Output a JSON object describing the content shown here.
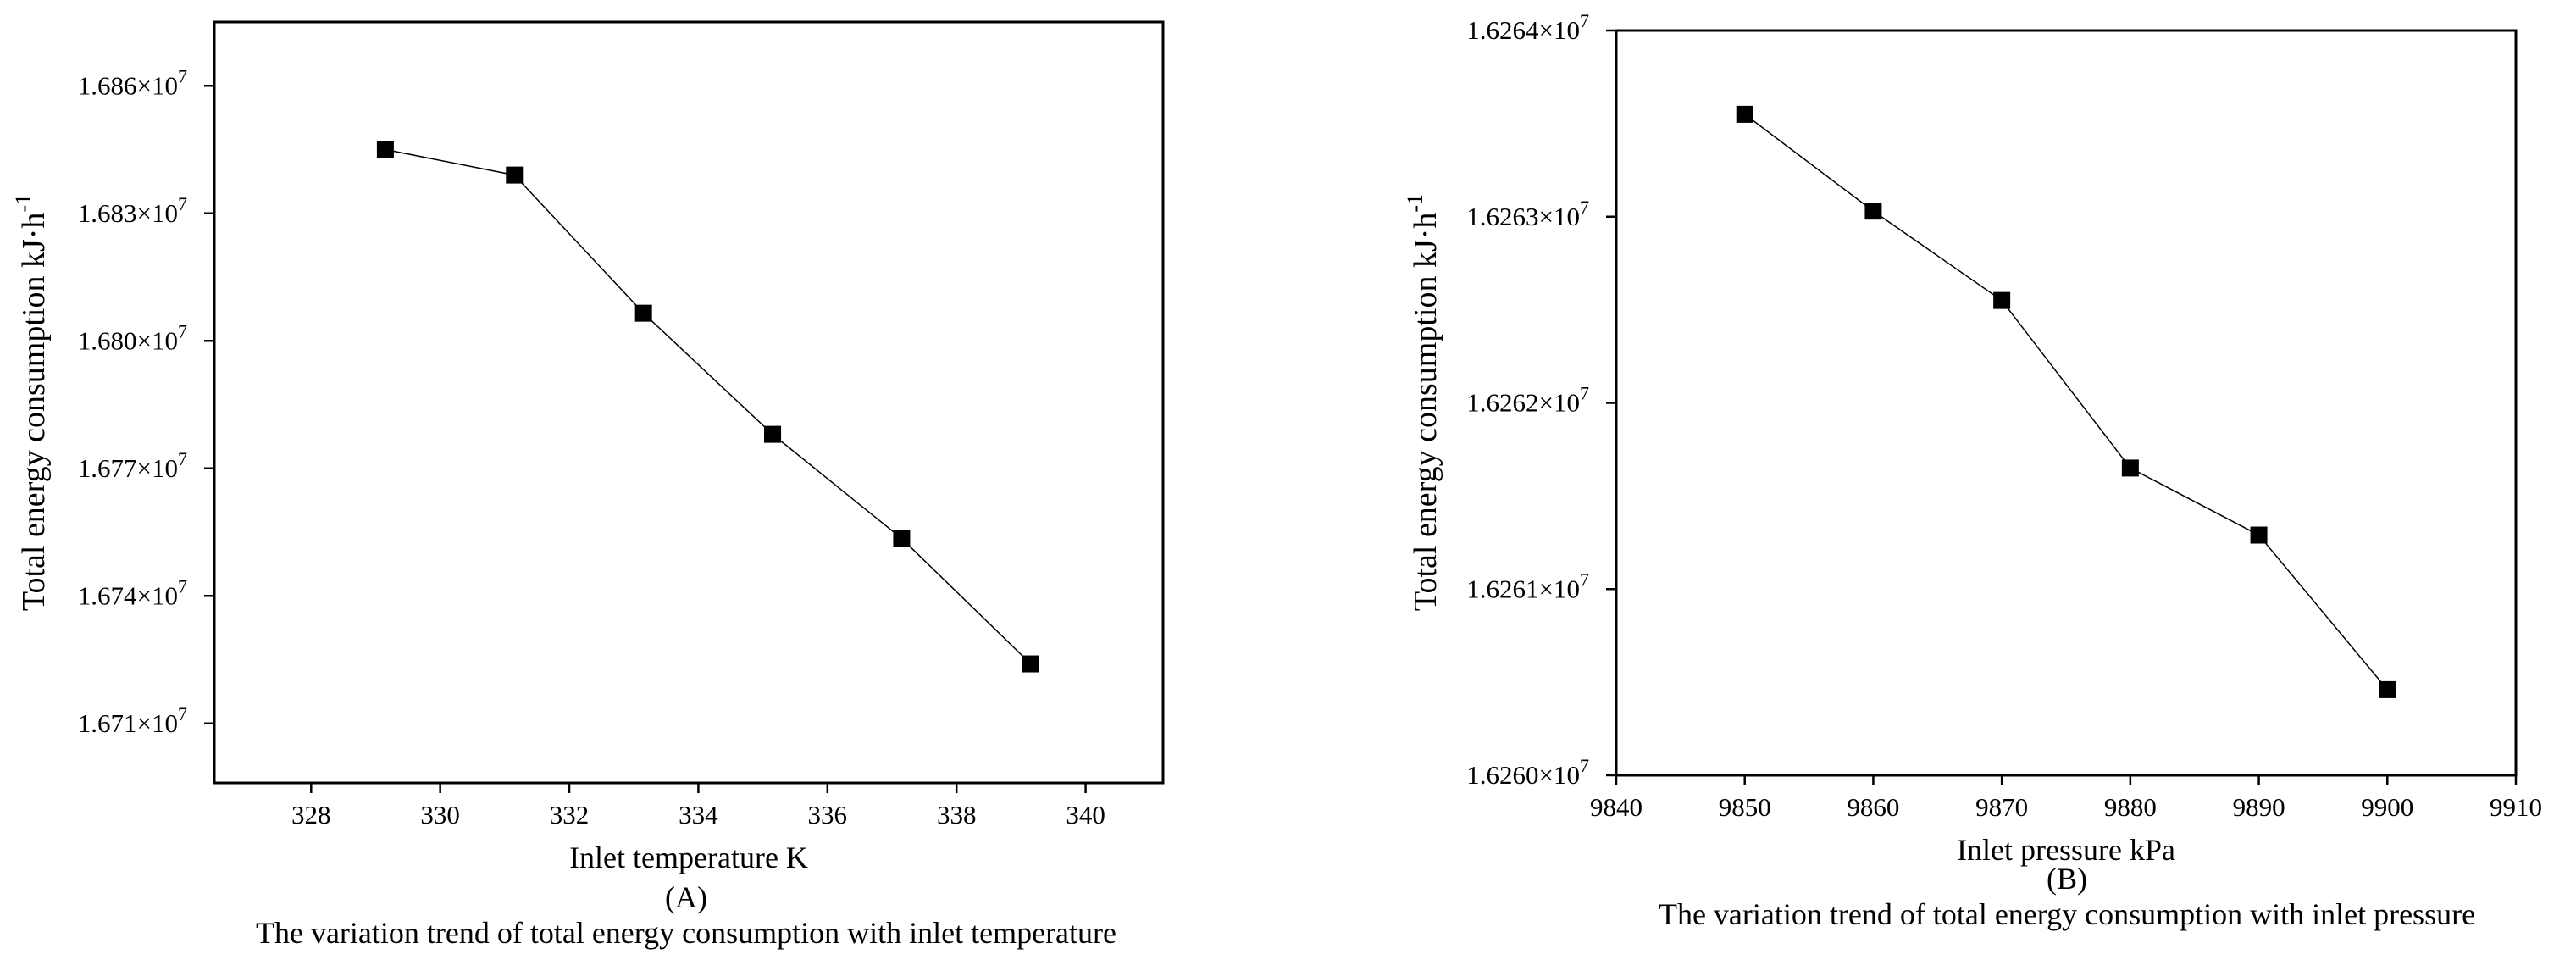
{
  "chart_data": [
    {
      "type": "line",
      "x": [
        329.15,
        331.15,
        333.15,
        335.15,
        337.15,
        339.15
      ],
      "series": [
        {
          "values": [
            16845000,
            16839000,
            16806500,
            16778000,
            16753500,
            16724000
          ]
        }
      ],
      "xlim": [
        326.5,
        341.2
      ],
      "ylim": [
        16696000,
        16875000
      ],
      "xticks": [
        328,
        330,
        332,
        334,
        336,
        338,
        340
      ],
      "yticks": [
        16710000,
        16740000,
        16770000,
        16800000,
        16830000,
        16860000
      ],
      "xtick_labels": [
        "328",
        "330",
        "332",
        "334",
        "336",
        "338",
        "340"
      ],
      "ytick_labels": [
        "1.671×10",
        "1.674×10",
        "1.677×10",
        "1.680×10",
        "1.683×10",
        "1.686×10"
      ],
      "ytick_exp": "7",
      "xlabel": "Inlet temperature K",
      "ylabel": "Total energy consumption  kJ·h",
      "ylabel_sup": "-1",
      "panel_label": "(A)",
      "caption": "The variation trend of total energy consumption with inlet temperature",
      "marker": "square",
      "grid": false,
      "color": "#000000"
    },
    {
      "type": "line",
      "x": [
        9850,
        9860,
        9870,
        9880,
        9890,
        9900
      ],
      "series": [
        {
          "values": [
            16263550,
            16263030,
            16262550,
            16261650,
            16261290,
            16260460
          ]
        }
      ],
      "xlim": [
        9840,
        9910
      ],
      "ylim": [
        16260000,
        16264000
      ],
      "xticks": [
        9840,
        9850,
        9860,
        9870,
        9880,
        9890,
        9900,
        9910
      ],
      "yticks": [
        16260000,
        16261000,
        16262000,
        16263000,
        16264000
      ],
      "xtick_labels": [
        "9840",
        "9850",
        "9860",
        "9870",
        "9880",
        "9890",
        "9900",
        "9910"
      ],
      "ytick_labels": [
        "1.6260×10",
        "1.6261×10",
        "1.6262×10",
        "1.6263×10",
        "1.6264×10"
      ],
      "ytick_exp": "7",
      "xlabel": "Inlet pressure kPa",
      "ylabel": "Total energy consumption kJ·h",
      "ylabel_sup": "-1",
      "panel_label": "(B)",
      "caption": "The variation trend of total energy consumption with inlet pressure",
      "marker": "square",
      "grid": false,
      "color": "#000000"
    }
  ]
}
